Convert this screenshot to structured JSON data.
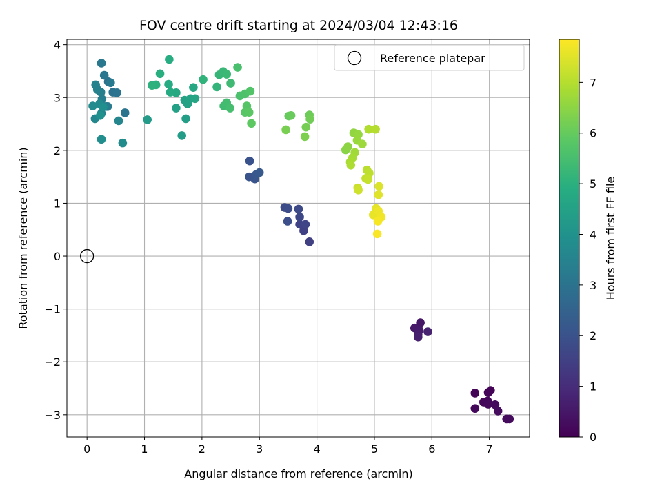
{
  "chart_data": {
    "type": "scatter",
    "title": "FOV centre drift starting at 2024/03/04 12:43:16",
    "xlabel": "Angular distance from reference (arcmin)",
    "ylabel": "Rotation from reference (arcmin)",
    "xlim": [
      -0.35,
      7.7
    ],
    "ylim": [
      -3.42,
      4.1
    ],
    "xticks": [
      0,
      1,
      2,
      3,
      4,
      5,
      6,
      7
    ],
    "yticks": [
      -3,
      -2,
      -1,
      0,
      1,
      2,
      3,
      4
    ],
    "grid": true,
    "legend": {
      "position": "upper right",
      "entries": [
        "Reference platepar"
      ]
    },
    "reference_point": {
      "label": "Reference platepar",
      "x": 0,
      "y": 0,
      "marker": "open-circle"
    },
    "colorbar": {
      "label": "Hours from first FF file",
      "colormap": "viridis",
      "range": [
        0,
        7.85
      ],
      "ticks": [
        0,
        1,
        2,
        3,
        4,
        5,
        6,
        7
      ]
    },
    "points": [
      {
        "x": 7.02,
        "y": -2.54,
        "h": 0.05
      },
      {
        "x": 6.75,
        "y": -2.59,
        "h": 0.08
      },
      {
        "x": 6.98,
        "y": -2.58,
        "h": 0.1
      },
      {
        "x": 6.97,
        "y": -2.74,
        "h": 0.12
      },
      {
        "x": 6.9,
        "y": -2.76,
        "h": 0.14
      },
      {
        "x": 6.75,
        "y": -2.88,
        "h": 0.16
      },
      {
        "x": 6.98,
        "y": -2.8,
        "h": 0.18
      },
      {
        "x": 7.1,
        "y": -2.81,
        "h": 0.2
      },
      {
        "x": 7.15,
        "y": -2.93,
        "h": 0.22
      },
      {
        "x": 7.3,
        "y": -3.08,
        "h": 0.24
      },
      {
        "x": 7.35,
        "y": -3.08,
        "h": 0.26
      },
      {
        "x": 5.8,
        "y": -1.26,
        "h": 0.5
      },
      {
        "x": 5.7,
        "y": -1.36,
        "h": 0.55
      },
      {
        "x": 5.78,
        "y": -1.4,
        "h": 0.6
      },
      {
        "x": 5.76,
        "y": -1.48,
        "h": 0.65
      },
      {
        "x": 5.76,
        "y": -1.53,
        "h": 0.7
      },
      {
        "x": 5.93,
        "y": -1.43,
        "h": 0.75
      },
      {
        "x": 3.87,
        "y": 0.27,
        "h": 1.5
      },
      {
        "x": 3.77,
        "y": 0.48,
        "h": 1.55
      },
      {
        "x": 3.7,
        "y": 0.6,
        "h": 1.6
      },
      {
        "x": 3.8,
        "y": 0.6,
        "h": 1.65
      },
      {
        "x": 3.7,
        "y": 0.74,
        "h": 1.7
      },
      {
        "x": 3.68,
        "y": 0.89,
        "h": 1.75
      },
      {
        "x": 3.44,
        "y": 0.92,
        "h": 1.8
      },
      {
        "x": 3.5,
        "y": 0.9,
        "h": 1.85
      },
      {
        "x": 3.49,
        "y": 0.66,
        "h": 1.9
      },
      {
        "x": 2.83,
        "y": 1.8,
        "h": 2.0
      },
      {
        "x": 2.82,
        "y": 1.5,
        "h": 2.05
      },
      {
        "x": 2.92,
        "y": 1.46,
        "h": 2.1
      },
      {
        "x": 2.94,
        "y": 1.54,
        "h": 2.15
      },
      {
        "x": 3.0,
        "y": 1.58,
        "h": 2.2
      },
      {
        "x": 0.37,
        "y": 3.3,
        "h": 2.9
      },
      {
        "x": 0.45,
        "y": 3.1,
        "h": 2.95
      },
      {
        "x": 0.52,
        "y": 3.09,
        "h": 3.0
      },
      {
        "x": 0.66,
        "y": 2.71,
        "h": 3.05
      },
      {
        "x": 0.3,
        "y": 3.42,
        "h": 3.1
      },
      {
        "x": 0.25,
        "y": 3.65,
        "h": 3.15
      },
      {
        "x": 0.41,
        "y": 3.28,
        "h": 3.2
      },
      {
        "x": 0.36,
        "y": 2.83,
        "h": 3.25
      },
      {
        "x": 0.33,
        "y": 2.83,
        "h": 3.3
      },
      {
        "x": 0.26,
        "y": 2.97,
        "h": 3.35
      },
      {
        "x": 0.24,
        "y": 3.1,
        "h": 3.4
      },
      {
        "x": 0.18,
        "y": 3.15,
        "h": 3.45
      },
      {
        "x": 0.15,
        "y": 3.24,
        "h": 3.5
      },
      {
        "x": 0.25,
        "y": 2.7,
        "h": 3.55
      },
      {
        "x": 0.55,
        "y": 2.56,
        "h": 3.6
      },
      {
        "x": 0.14,
        "y": 2.6,
        "h": 3.65
      },
      {
        "x": 0.22,
        "y": 2.88,
        "h": 3.7
      },
      {
        "x": 0.1,
        "y": 2.84,
        "h": 3.75
      },
      {
        "x": 0.62,
        "y": 2.14,
        "h": 3.8
      },
      {
        "x": 0.25,
        "y": 2.21,
        "h": 3.85
      },
      {
        "x": 0.28,
        "y": 2.82,
        "h": 3.9
      },
      {
        "x": 0.23,
        "y": 2.66,
        "h": 3.95
      },
      {
        "x": 1.05,
        "y": 2.58,
        "h": 4.3
      },
      {
        "x": 1.65,
        "y": 2.28,
        "h": 4.35
      },
      {
        "x": 1.72,
        "y": 2.6,
        "h": 4.4
      },
      {
        "x": 1.55,
        "y": 2.8,
        "h": 4.45
      },
      {
        "x": 1.75,
        "y": 2.88,
        "h": 4.5
      },
      {
        "x": 1.7,
        "y": 2.95,
        "h": 4.55
      },
      {
        "x": 1.8,
        "y": 2.98,
        "h": 4.6
      },
      {
        "x": 1.88,
        "y": 2.98,
        "h": 4.65
      },
      {
        "x": 1.85,
        "y": 3.19,
        "h": 4.7
      },
      {
        "x": 1.55,
        "y": 3.09,
        "h": 4.75
      },
      {
        "x": 1.45,
        "y": 3.1,
        "h": 4.8
      },
      {
        "x": 1.42,
        "y": 3.25,
        "h": 4.85
      },
      {
        "x": 1.43,
        "y": 3.72,
        "h": 4.9
      },
      {
        "x": 1.27,
        "y": 3.45,
        "h": 4.95
      },
      {
        "x": 1.2,
        "y": 3.24,
        "h": 5.0
      },
      {
        "x": 1.13,
        "y": 3.23,
        "h": 5.05
      },
      {
        "x": 2.02,
        "y": 3.34,
        "h": 5.1
      },
      {
        "x": 2.26,
        "y": 3.2,
        "h": 5.15
      },
      {
        "x": 2.3,
        "y": 3.43,
        "h": 5.2
      },
      {
        "x": 2.37,
        "y": 3.49,
        "h": 5.25
      },
      {
        "x": 2.43,
        "y": 3.44,
        "h": 5.3
      },
      {
        "x": 2.5,
        "y": 3.27,
        "h": 5.35
      },
      {
        "x": 2.38,
        "y": 2.84,
        "h": 5.4
      },
      {
        "x": 2.43,
        "y": 2.9,
        "h": 5.45
      },
      {
        "x": 2.49,
        "y": 2.8,
        "h": 5.5
      },
      {
        "x": 2.62,
        "y": 3.57,
        "h": 5.55
      },
      {
        "x": 2.66,
        "y": 3.03,
        "h": 5.6
      },
      {
        "x": 2.75,
        "y": 3.07,
        "h": 5.65
      },
      {
        "x": 2.84,
        "y": 3.12,
        "h": 5.7
      },
      {
        "x": 2.78,
        "y": 2.84,
        "h": 5.75
      },
      {
        "x": 2.75,
        "y": 2.72,
        "h": 5.8
      },
      {
        "x": 2.82,
        "y": 2.72,
        "h": 5.85
      },
      {
        "x": 2.86,
        "y": 2.51,
        "h": 5.9
      },
      {
        "x": 3.51,
        "y": 2.65,
        "h": 6.0
      },
      {
        "x": 3.55,
        "y": 2.66,
        "h": 6.05
      },
      {
        "x": 3.87,
        "y": 2.67,
        "h": 6.1
      },
      {
        "x": 3.88,
        "y": 2.59,
        "h": 6.15
      },
      {
        "x": 3.81,
        "y": 2.44,
        "h": 6.2
      },
      {
        "x": 3.46,
        "y": 2.39,
        "h": 6.25
      },
      {
        "x": 3.79,
        "y": 2.26,
        "h": 6.3
      },
      {
        "x": 4.5,
        "y": 2.01,
        "h": 6.45
      },
      {
        "x": 4.54,
        "y": 2.07,
        "h": 6.5
      },
      {
        "x": 4.64,
        "y": 2.33,
        "h": 6.55
      },
      {
        "x": 4.72,
        "y": 2.3,
        "h": 6.6
      },
      {
        "x": 4.7,
        "y": 2.19,
        "h": 6.65
      },
      {
        "x": 4.79,
        "y": 2.12,
        "h": 6.7
      },
      {
        "x": 4.66,
        "y": 1.96,
        "h": 6.75
      },
      {
        "x": 4.62,
        "y": 1.86,
        "h": 6.8
      },
      {
        "x": 4.58,
        "y": 1.78,
        "h": 6.85
      },
      {
        "x": 4.59,
        "y": 1.72,
        "h": 6.9
      },
      {
        "x": 4.9,
        "y": 2.4,
        "h": 6.95
      },
      {
        "x": 5.02,
        "y": 2.4,
        "h": 7.0
      },
      {
        "x": 4.87,
        "y": 1.63,
        "h": 7.05
      },
      {
        "x": 4.91,
        "y": 1.57,
        "h": 7.1
      },
      {
        "x": 4.85,
        "y": 1.47,
        "h": 7.15
      },
      {
        "x": 4.89,
        "y": 1.45,
        "h": 7.2
      },
      {
        "x": 4.71,
        "y": 1.29,
        "h": 7.25
      },
      {
        "x": 4.72,
        "y": 1.25,
        "h": 7.3
      },
      {
        "x": 5.08,
        "y": 1.32,
        "h": 7.45
      },
      {
        "x": 5.07,
        "y": 1.16,
        "h": 7.5
      },
      {
        "x": 5.03,
        "y": 0.9,
        "h": 7.55
      },
      {
        "x": 4.98,
        "y": 0.78,
        "h": 7.6
      },
      {
        "x": 5.07,
        "y": 0.85,
        "h": 7.65
      },
      {
        "x": 5.12,
        "y": 0.74,
        "h": 7.7
      },
      {
        "x": 5.06,
        "y": 0.66,
        "h": 7.75
      },
      {
        "x": 5.05,
        "y": 0.42,
        "h": 7.8
      }
    ]
  }
}
